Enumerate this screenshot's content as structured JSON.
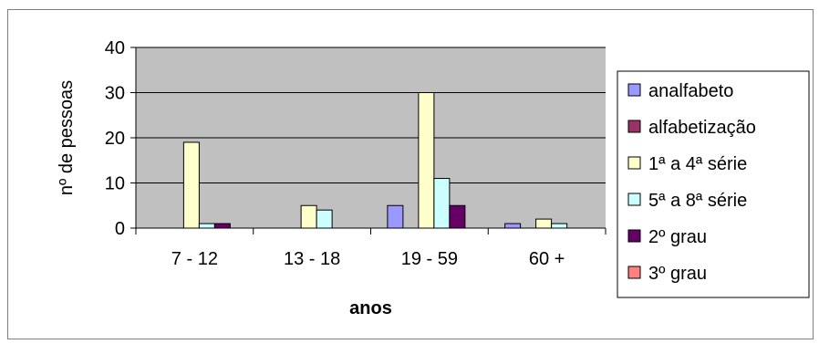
{
  "chart_data": {
    "type": "bar",
    "categories": [
      "7 - 12",
      "13 - 18",
      "19 - 59",
      "60 +"
    ],
    "series": [
      {
        "name": "analfabeto",
        "values": [
          0,
          0,
          5,
          1
        ],
        "color": "#9999ff"
      },
      {
        "name": "alfabetização",
        "values": [
          0,
          0,
          0,
          0
        ],
        "color": "#993366"
      },
      {
        "name": "1ª a 4ª série",
        "values": [
          19,
          5,
          30,
          2
        ],
        "color": "#ffffcc"
      },
      {
        "name": "5ª a 8ª série",
        "values": [
          1,
          4,
          11,
          1
        ],
        "color": "#ccffff"
      },
      {
        "name": "2º grau",
        "values": [
          1,
          0,
          5,
          0
        ],
        "color": "#660066"
      },
      {
        "name": "3º grau",
        "values": [
          0,
          0,
          0,
          0
        ],
        "color": "#ff8080"
      }
    ],
    "title": "",
    "xlabel": "anos",
    "ylabel": "nº de pessoas",
    "ylim": [
      0,
      40
    ],
    "yticks": [
      0,
      10,
      20,
      30,
      40
    ],
    "grid": true,
    "legend_position": "right",
    "plot_background": "#c0c0c0"
  }
}
